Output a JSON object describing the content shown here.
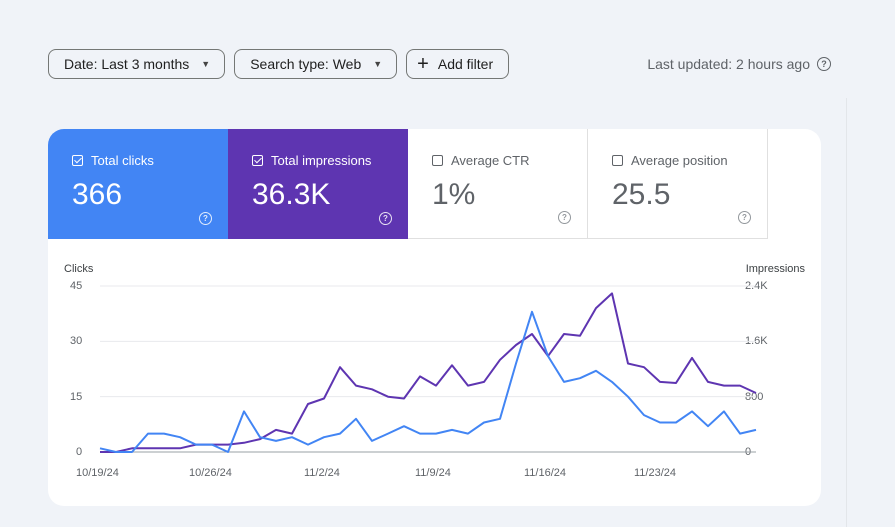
{
  "toolbar": {
    "date_label": "Date: Last 3 months",
    "search_type_label": "Search type: Web",
    "add_filter_label": "Add filter",
    "plus_glyph": "+",
    "caret_glyph": "▼"
  },
  "status": {
    "last_updated": "Last updated: 2 hours ago",
    "help_glyph": "?"
  },
  "metrics": [
    {
      "label": "Total clicks",
      "value": "366",
      "checked": true,
      "color": "#4285f4"
    },
    {
      "label": "Total impressions",
      "value": "36.3K",
      "checked": true,
      "color": "#5e35b1"
    },
    {
      "label": "Average CTR",
      "value": "1%",
      "checked": false
    },
    {
      "label": "Average position",
      "value": "25.5",
      "checked": false
    }
  ],
  "chart_data": {
    "type": "line",
    "left_axis_title": "Clicks",
    "right_axis_title": "Impressions",
    "left_ticks": [
      "45",
      "30",
      "15",
      "0"
    ],
    "right_ticks": [
      "2.4K",
      "1.6K",
      "800",
      "0"
    ],
    "left_range": [
      0,
      45
    ],
    "right_range": [
      0,
      2400
    ],
    "x_tick_labels": [
      "10/19/24",
      "10/26/24",
      "11/2/24",
      "11/9/24",
      "11/16/24",
      "11/23/24"
    ],
    "grid": true,
    "series": [
      {
        "name": "Clicks",
        "axis": "left",
        "color": "#4285f4",
        "values": [
          1,
          0,
          0,
          5,
          5,
          4,
          2,
          2,
          0,
          11,
          4,
          3,
          4,
          2,
          4,
          5,
          9,
          3,
          5,
          7,
          5,
          5,
          6,
          5,
          8,
          9,
          24,
          38,
          26,
          19,
          20,
          22,
          19,
          15,
          10,
          8,
          8,
          11,
          7,
          11,
          5,
          6
        ]
      },
      {
        "name": "Impressions",
        "axis": "left",
        "color": "#5e35b1",
        "values": [
          0,
          0,
          1,
          1,
          1,
          1,
          2,
          2,
          2,
          2.5,
          3.5,
          6,
          5,
          13,
          14.5,
          23,
          18,
          17,
          15,
          14.5,
          20.5,
          18,
          23.5,
          18,
          19,
          25,
          29,
          32,
          26,
          32,
          31.5,
          39,
          43,
          24,
          23,
          19,
          18.7,
          25.5,
          19,
          18,
          18,
          16
        ]
      }
    ]
  }
}
